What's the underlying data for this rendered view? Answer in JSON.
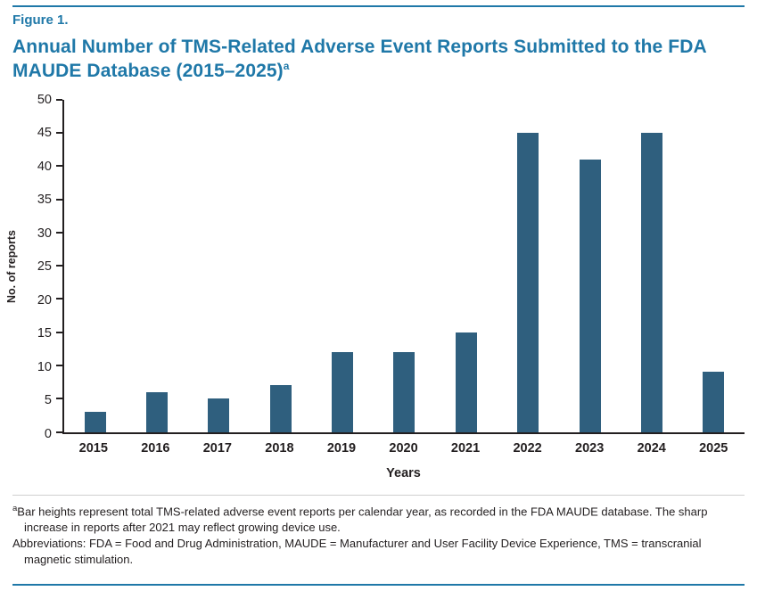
{
  "figure_label": "Figure 1.",
  "title": "Annual Number of TMS-Related Adverse Event Reports Submitted to the FDA MAUDE Database (2015–2025)",
  "title_footnote_marker": "a",
  "colors": {
    "accent": "#1f78a8",
    "bar": "#2f5f7e",
    "axis": "#231f20"
  },
  "chart_data": {
    "type": "bar",
    "title": "Annual Number of TMS-Related Adverse Event Reports Submitted to the FDA MAUDE Database (2015–2025)",
    "categories": [
      "2015",
      "2016",
      "2017",
      "2018",
      "2019",
      "2020",
      "2021",
      "2022",
      "2023",
      "2024",
      "2025"
    ],
    "values": [
      3,
      6,
      5,
      7,
      12,
      12,
      15,
      45,
      41,
      45,
      9
    ],
    "xlabel": "Years",
    "ylabel": "No. of reports",
    "ylim": [
      0,
      50
    ],
    "ytick_step": 5,
    "grid": false,
    "legend": false,
    "bar_color": "#2f5f7e"
  },
  "footnotes": [
    {
      "marker": "a",
      "text": "Bar heights represent total TMS-related adverse event reports per calendar year, as recorded in the FDA MAUDE database. The sharp increase in reports after 2021 may reflect growing device use."
    },
    {
      "marker": "",
      "text": "Abbreviations: FDA = Food and Drug Administration, MAUDE = Manufacturer and User Facility Device Experience, TMS = transcranial magnetic stimulation."
    }
  ]
}
